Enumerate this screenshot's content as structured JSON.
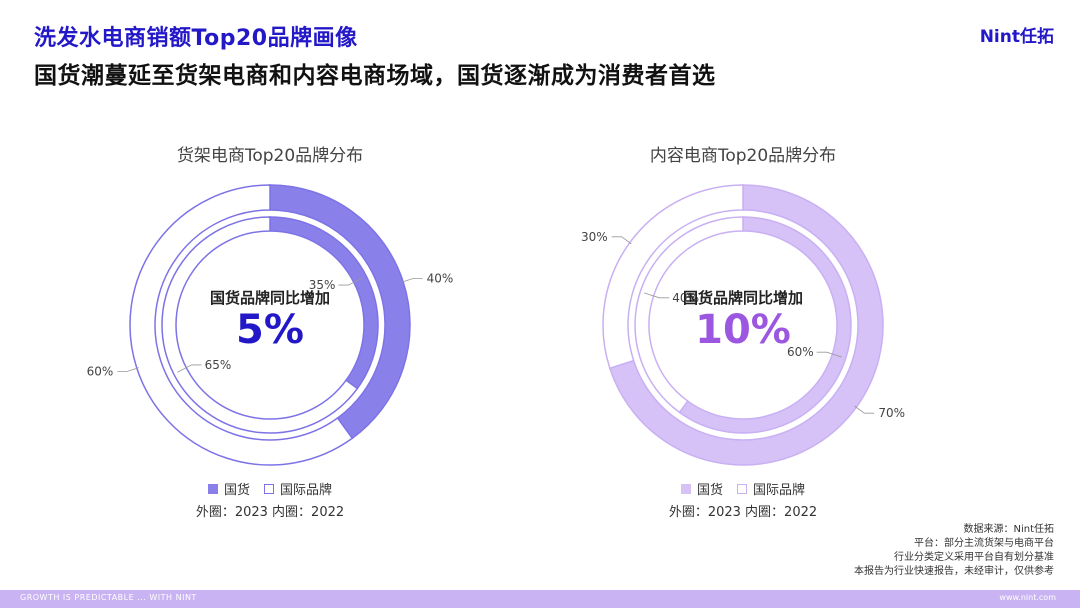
{
  "header": {
    "title": "洗发水电商销额Top20品牌画像",
    "subtitle": "国货潮蔓延至货架电商和内容电商场域，国货逐渐成为消费者首选",
    "logo": "Nint任拓"
  },
  "chart_data": [
    {
      "type": "pie",
      "variant": "nested-donut",
      "title": "货架电商Top20品牌分布",
      "center_label": "国货品牌同比增加",
      "center_value": "5%",
      "legend_placement": "bottom",
      "note": "外圈：2023  内圈：2022",
      "colors": {
        "domestic": "#8a80ea",
        "international": "#ffffff",
        "outline": "#7d73e6",
        "value": "#2318c8"
      },
      "rings": [
        {
          "ring": "outer",
          "year": "2023",
          "slices": [
            {
              "name": "国货",
              "value": 40,
              "label": "40%"
            },
            {
              "name": "国际品牌",
              "value": 60,
              "label": "60%"
            }
          ]
        },
        {
          "ring": "inner",
          "year": "2022",
          "slices": [
            {
              "name": "国货",
              "value": 35,
              "label": "35%"
            },
            {
              "name": "国际品牌",
              "value": 65,
              "label": "65%"
            }
          ]
        }
      ],
      "legend": [
        "国货",
        "国际品牌"
      ]
    },
    {
      "type": "pie",
      "variant": "nested-donut",
      "title": "内容电商Top20品牌分布",
      "center_label": "国货品牌同比增加",
      "center_value": "10%",
      "legend_placement": "bottom",
      "note": "外圈：2023  内圈：2022",
      "colors": {
        "domestic": "#d6c2f7",
        "international": "#ffffff",
        "outline": "#c8b0f3",
        "value": "#9b57e0"
      },
      "rings": [
        {
          "ring": "outer",
          "year": "2023",
          "slices": [
            {
              "name": "国货",
              "value": 70,
              "label": "70%"
            },
            {
              "name": "国际品牌",
              "value": 30,
              "label": "30%"
            }
          ]
        },
        {
          "ring": "inner",
          "year": "2022",
          "slices": [
            {
              "name": "国货",
              "value": 60,
              "label": "60%"
            },
            {
              "name": "国际品牌",
              "value": 40,
              "label": "40%"
            }
          ]
        }
      ],
      "legend": [
        "国货",
        "国际品牌"
      ]
    }
  ],
  "source": {
    "lines": [
      "数据来源：Nint任拓",
      "平台：部分主流货架与电商平台",
      "行业分类定义采用平台自有划分基准",
      "本报告为行业快速报告，未经审计，仅供参考"
    ]
  },
  "footer": {
    "left": "GROWTH IS PREDICTABLE ... WITH NINT",
    "right": "www.nint.com"
  }
}
